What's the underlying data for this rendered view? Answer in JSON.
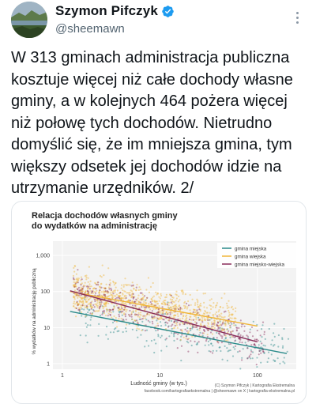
{
  "author": {
    "display_name": "Szymon Pifczyk",
    "handle": "@sheemawn",
    "verified": true,
    "avatar_icon": "avatar-landscape-icon",
    "verified_color": "#1d9bf0"
  },
  "tweet": {
    "text": "W 313 gminach administracja publiczna\nkosztuje więcej niż całe dochody własne\ngminy, a w kolejnych 464 pożera więcej\nniż połowę tych dochodów. Nietrudno\ndomyślić się, że im mniejsza gmina, tym\nwiększy odsetek jej dochodów idzie na\nutrzymanie urzędników. 2/"
  },
  "chart": {
    "title_line1": "Relacja dochodów własnych gminy",
    "title_line2": "do wydatków na administrację",
    "credit_line1": "(C) Szymon Pifczyk | Kartografia Ekstremalna",
    "credit_line2": "facebook.com/kartografiaekstremalna | @sheemawn on X | kartografia-ekstremalna.pl"
  },
  "chart_data": {
    "type": "scatter",
    "title": "Relacja dochodów własnych gminy do wydatków na administrację",
    "xlabel": "Ludność gminy (w tys.)",
    "ylabel": "% wydatków na administrację publiczną",
    "x_scale": "log",
    "y_scale": "log",
    "xlim": [
      0.8,
      250
    ],
    "ylim": [
      0.7,
      2500
    ],
    "x_ticks": [
      1,
      10,
      100
    ],
    "x_tick_labels": [
      "1",
      "10",
      "100"
    ],
    "y_ticks": [
      1,
      10,
      100,
      1000
    ],
    "y_tick_labels": [
      "1",
      "10",
      "100",
      "1,000"
    ],
    "grid": true,
    "legend_position": "top-right",
    "series": [
      {
        "name": "gmina miejska",
        "color": "#2a8a8a",
        "trend": [
          [
            1.2,
            28
          ],
          [
            200,
            1.9
          ]
        ]
      },
      {
        "name": "gmina wiejska",
        "color": "#f0b53a",
        "trend": [
          [
            1.2,
            100
          ],
          [
            100,
            11
          ]
        ]
      },
      {
        "name": "gmina miejsko-wiejska",
        "color": "#8a2d5a",
        "trend": [
          [
            1.2,
            105
          ],
          [
            100,
            4
          ]
        ]
      }
    ]
  }
}
